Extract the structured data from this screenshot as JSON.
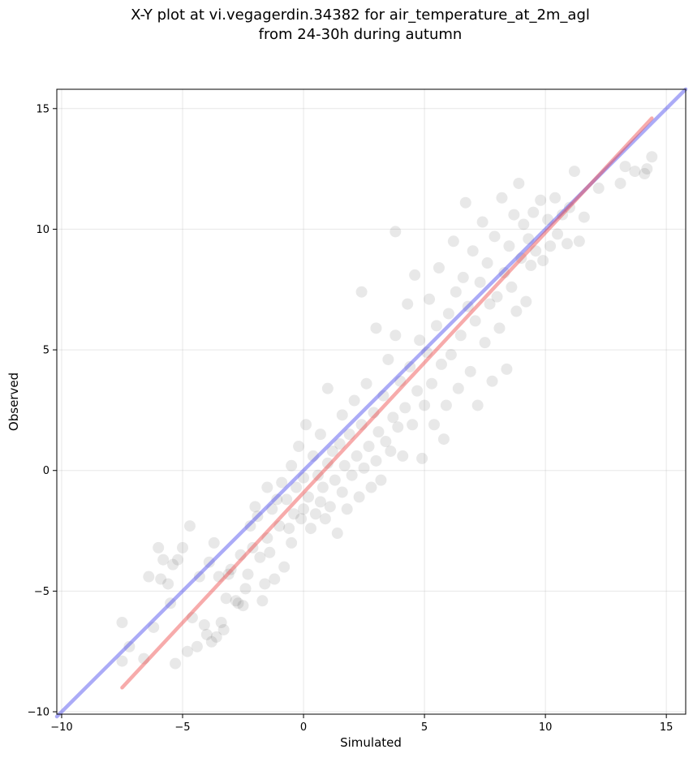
{
  "chart_data": {
    "type": "scatter",
    "title_line1": "X-Y plot at vi.vegagerdin.34382 for air_temperature_at_2m_agl",
    "title_line2": "from 24-30h during autumn",
    "xlabel": "Simulated",
    "ylabel": "Observed",
    "xlim": [
      -10.2,
      15.8
    ],
    "ylim": [
      -10.1,
      15.8
    ],
    "xticks": [
      -10,
      -5,
      0,
      5,
      10,
      15
    ],
    "yticks": [
      -10,
      -5,
      0,
      5,
      10,
      15
    ],
    "xtick_labels": [
      "−10",
      "−5",
      "0",
      "5",
      "10",
      "15"
    ],
    "ytick_labels": [
      "−10",
      "−5",
      "0",
      "5",
      "10",
      "15"
    ],
    "grid": true,
    "point_color": "#000000",
    "point_opacity": 0.09,
    "lines": [
      {
        "role": "identity",
        "color": "#4444ee",
        "x": [
          -10.2,
          15.8
        ],
        "y": [
          -10.2,
          15.8
        ]
      },
      {
        "role": "fit",
        "color": "#ee4444",
        "x": [
          -7.5,
          14.4
        ],
        "y": [
          -9.0,
          14.6
        ]
      }
    ],
    "points": [
      [
        -7.5,
        -6.3
      ],
      [
        -7.5,
        -7.9
      ],
      [
        -7.2,
        -7.3
      ],
      [
        -6.6,
        -7.8
      ],
      [
        -6.4,
        -4.4
      ],
      [
        -6.2,
        -6.5
      ],
      [
        -6.0,
        -3.2
      ],
      [
        -5.9,
        -4.5
      ],
      [
        -5.8,
        -3.7
      ],
      [
        -5.6,
        -4.7
      ],
      [
        -5.5,
        -5.5
      ],
      [
        -5.4,
        -3.9
      ],
      [
        -5.2,
        -3.7
      ],
      [
        -5.3,
        -8.0
      ],
      [
        -5.0,
        -3.2
      ],
      [
        -4.7,
        -2.3
      ],
      [
        -4.8,
        -7.5
      ],
      [
        -4.6,
        -6.1
      ],
      [
        -4.4,
        -7.3
      ],
      [
        -4.3,
        -4.4
      ],
      [
        -4.1,
        -6.4
      ],
      [
        -4.0,
        -6.8
      ],
      [
        -3.9,
        -3.8
      ],
      [
        -3.8,
        -7.1
      ],
      [
        -3.7,
        -3.0
      ],
      [
        -3.6,
        -6.9
      ],
      [
        -3.5,
        -4.4
      ],
      [
        -3.4,
        -6.3
      ],
      [
        -3.3,
        -6.6
      ],
      [
        -3.2,
        -5.3
      ],
      [
        -3.1,
        -4.3
      ],
      [
        -3.0,
        -4.1
      ],
      [
        -2.8,
        -5.4
      ],
      [
        -2.7,
        -5.5
      ],
      [
        -2.6,
        -3.5
      ],
      [
        -2.5,
        -5.6
      ],
      [
        -2.4,
        -4.9
      ],
      [
        -2.3,
        -4.3
      ],
      [
        -2.2,
        -2.3
      ],
      [
        -2.1,
        -3.2
      ],
      [
        -2.0,
        -1.5
      ],
      [
        -1.9,
        -1.9
      ],
      [
        -1.8,
        -3.6
      ],
      [
        -1.7,
        -5.4
      ],
      [
        -1.6,
        -4.7
      ],
      [
        -1.5,
        -0.7
      ],
      [
        -1.5,
        -2.8
      ],
      [
        -1.4,
        -3.4
      ],
      [
        -1.3,
        -1.6
      ],
      [
        -1.2,
        -4.5
      ],
      [
        -1.1,
        -1.2
      ],
      [
        -1.0,
        -2.3
      ],
      [
        -0.9,
        -0.5
      ],
      [
        -0.8,
        -4.0
      ],
      [
        -0.7,
        -1.2
      ],
      [
        -0.6,
        -2.4
      ],
      [
        -0.5,
        0.2
      ],
      [
        -0.5,
        -3.0
      ],
      [
        -0.4,
        -1.8
      ],
      [
        -0.3,
        -0.7
      ],
      [
        -0.2,
        1.0
      ],
      [
        -0.1,
        -2.0
      ],
      [
        0.0,
        -0.3
      ],
      [
        0.0,
        -1.6
      ],
      [
        0.1,
        1.9
      ],
      [
        0.2,
        -1.1
      ],
      [
        0.3,
        -2.4
      ],
      [
        0.4,
        0.6
      ],
      [
        0.5,
        -1.8
      ],
      [
        0.6,
        -0.2
      ],
      [
        0.7,
        -1.3
      ],
      [
        0.7,
        1.5
      ],
      [
        0.8,
        -0.7
      ],
      [
        0.9,
        -2.0
      ],
      [
        1.0,
        0.3
      ],
      [
        1.0,
        3.4
      ],
      [
        1.1,
        -1.5
      ],
      [
        1.2,
        0.8
      ],
      [
        1.3,
        -0.4
      ],
      [
        1.4,
        -2.6
      ],
      [
        1.5,
        1.1
      ],
      [
        1.6,
        -0.9
      ],
      [
        1.6,
        2.3
      ],
      [
        1.7,
        0.2
      ],
      [
        1.8,
        -1.6
      ],
      [
        1.9,
        1.5
      ],
      [
        2.0,
        -0.2
      ],
      [
        2.1,
        2.9
      ],
      [
        2.2,
        0.6
      ],
      [
        2.3,
        -1.1
      ],
      [
        2.4,
        1.9
      ],
      [
        2.4,
        7.4
      ],
      [
        2.5,
        0.1
      ],
      [
        2.6,
        3.6
      ],
      [
        2.7,
        1.0
      ],
      [
        2.8,
        -0.7
      ],
      [
        2.9,
        2.4
      ],
      [
        3.0,
        0.4
      ],
      [
        3.0,
        5.9
      ],
      [
        3.1,
        1.6
      ],
      [
        3.2,
        -0.4
      ],
      [
        3.3,
        3.1
      ],
      [
        3.4,
        1.2
      ],
      [
        3.5,
        4.6
      ],
      [
        3.6,
        0.8
      ],
      [
        3.7,
        2.2
      ],
      [
        3.8,
        9.9
      ],
      [
        3.8,
        5.6
      ],
      [
        3.9,
        1.8
      ],
      [
        4.0,
        3.7
      ],
      [
        4.1,
        0.6
      ],
      [
        4.2,
        2.6
      ],
      [
        4.3,
        6.9
      ],
      [
        4.4,
        4.3
      ],
      [
        4.5,
        1.9
      ],
      [
        4.6,
        8.1
      ],
      [
        4.7,
        3.3
      ],
      [
        4.8,
        5.4
      ],
      [
        4.9,
        0.5
      ],
      [
        5.0,
        2.7
      ],
      [
        5.1,
        4.9
      ],
      [
        5.2,
        7.1
      ],
      [
        5.3,
        3.6
      ],
      [
        5.4,
        1.9
      ],
      [
        5.5,
        6.0
      ],
      [
        5.6,
        8.4
      ],
      [
        5.7,
        4.4
      ],
      [
        5.8,
        1.3
      ],
      [
        5.9,
        2.7
      ],
      [
        6.0,
        6.5
      ],
      [
        6.1,
        4.8
      ],
      [
        6.2,
        9.5
      ],
      [
        6.3,
        7.4
      ],
      [
        6.4,
        3.4
      ],
      [
        6.5,
        5.6
      ],
      [
        6.6,
        8.0
      ],
      [
        6.7,
        11.1
      ],
      [
        6.8,
        6.8
      ],
      [
        6.9,
        4.1
      ],
      [
        7.0,
        9.1
      ],
      [
        7.1,
        6.2
      ],
      [
        7.2,
        2.7
      ],
      [
        7.3,
        7.8
      ],
      [
        7.4,
        10.3
      ],
      [
        7.5,
        5.3
      ],
      [
        7.6,
        8.6
      ],
      [
        7.7,
        6.9
      ],
      [
        7.8,
        3.7
      ],
      [
        7.9,
        9.7
      ],
      [
        8.0,
        7.2
      ],
      [
        8.1,
        5.9
      ],
      [
        8.2,
        11.3
      ],
      [
        8.3,
        8.2
      ],
      [
        8.4,
        4.2
      ],
      [
        8.5,
        9.3
      ],
      [
        8.6,
        7.6
      ],
      [
        8.7,
        10.6
      ],
      [
        8.8,
        6.6
      ],
      [
        8.9,
        11.9
      ],
      [
        9.0,
        8.8
      ],
      [
        9.1,
        10.2
      ],
      [
        9.2,
        7.0
      ],
      [
        9.3,
        9.6
      ],
      [
        9.4,
        8.5
      ],
      [
        9.5,
        10.7
      ],
      [
        9.6,
        9.1
      ],
      [
        9.8,
        11.2
      ],
      [
        9.9,
        8.7
      ],
      [
        10.1,
        10.4
      ],
      [
        10.2,
        9.3
      ],
      [
        10.4,
        11.3
      ],
      [
        10.5,
        9.8
      ],
      [
        10.7,
        10.6
      ],
      [
        10.9,
        9.4
      ],
      [
        11.0,
        10.9
      ],
      [
        11.2,
        12.4
      ],
      [
        11.4,
        9.5
      ],
      [
        11.6,
        10.5
      ],
      [
        12.2,
        11.7
      ],
      [
        13.1,
        11.9
      ],
      [
        13.3,
        12.6
      ],
      [
        13.7,
        12.4
      ],
      [
        14.1,
        12.3
      ],
      [
        14.2,
        12.5
      ],
      [
        14.4,
        13.0
      ]
    ]
  }
}
